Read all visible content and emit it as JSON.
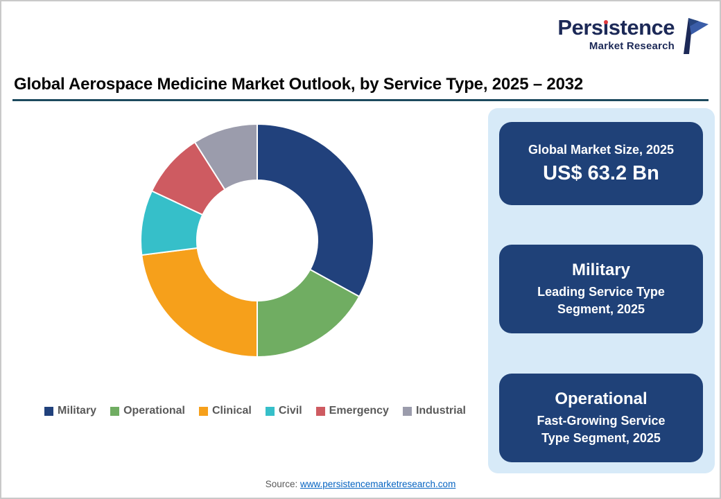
{
  "logo": {
    "name": "Persistence",
    "name_parts": [
      "Pers",
      "ı",
      "stence"
    ],
    "subtitle": "Market Research",
    "brand_color": "#1c2957",
    "accent_color": "#e03a3e"
  },
  "chart_data": {
    "type": "pie",
    "subtype": "donut",
    "title": "Global Aerospace Medicine Market Outlook, by Service Type, 2025 – 2032",
    "categories": [
      "Military",
      "Operational",
      "Clinical",
      "Civil",
      "Emergency",
      "Industrial"
    ],
    "values": [
      33,
      17,
      23,
      9,
      9,
      9
    ],
    "colors": [
      "#21417c",
      "#70ad62",
      "#f6a01b",
      "#36bfc9",
      "#ce5b61",
      "#9b9cac"
    ],
    "start_angle_deg": 0,
    "direction": "clockwise",
    "inner_radius_ratio": 0.52,
    "legend_position": "bottom"
  },
  "panel": {
    "bg_color": "#d7eaf8",
    "box_color": "#1f4178",
    "boxes": [
      {
        "title": "Global Market Size, 2025",
        "value": "US$ 63.2 Bn"
      },
      {
        "title": "Military",
        "subtitle": "Leading Service Type Segment, 2025"
      },
      {
        "title": "Operational",
        "subtitle": "Fast-Growing Service Type  Segment, 2025"
      }
    ]
  },
  "source": {
    "label": "Source:",
    "link_text": "www.persistencemarketresearch.com"
  }
}
